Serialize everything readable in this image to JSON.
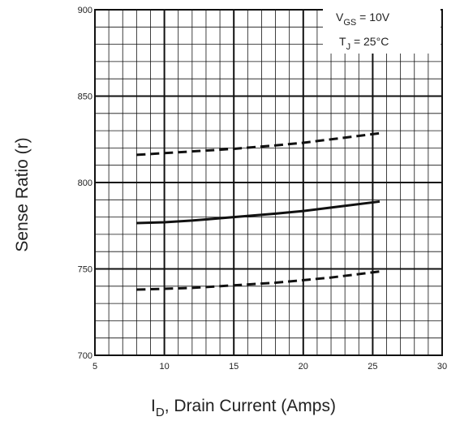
{
  "chart_data": {
    "type": "line",
    "title": "",
    "xlabel_main": "I",
    "xlabel_sub": "D",
    "xlabel_rest": ", Drain Current (Amps)",
    "ylabel": "Sense Ratio (r)",
    "xlim": [
      5,
      30
    ],
    "ylim": [
      700,
      900
    ],
    "x_ticks": [
      5,
      10,
      15,
      20,
      25,
      30
    ],
    "y_ticks": [
      700,
      750,
      800,
      850,
      900
    ],
    "x_tick_labels": [
      "5",
      "10",
      "15",
      "20",
      "25",
      "30"
    ],
    "y_tick_labels": [
      "700",
      "750",
      "800",
      "850",
      "900"
    ],
    "grid": true,
    "annotations": {
      "vgs_main": "V",
      "vgs_sub": "GS",
      "vgs_rest": " = 10V",
      "tj_main": "T",
      "tj_sub": "J",
      "tj_rest": " = 25°C"
    },
    "series": [
      {
        "style": "dashed",
        "x": [
          8,
          10,
          12,
          15,
          18,
          20,
          22,
          25.5
        ],
        "y": [
          816,
          817,
          818,
          819.5,
          821.5,
          823,
          825,
          828.5
        ]
      },
      {
        "style": "solid",
        "x": [
          8,
          10,
          12,
          15,
          18,
          20,
          22,
          25.5
        ],
        "y": [
          776.5,
          777,
          778,
          780,
          782,
          783.5,
          785.5,
          789
        ]
      },
      {
        "style": "dashed",
        "x": [
          8,
          10,
          12,
          15,
          18,
          20,
          22,
          25.5
        ],
        "y": [
          738,
          738.5,
          739,
          740.5,
          742,
          743.5,
          745,
          748.5
        ]
      }
    ]
  }
}
